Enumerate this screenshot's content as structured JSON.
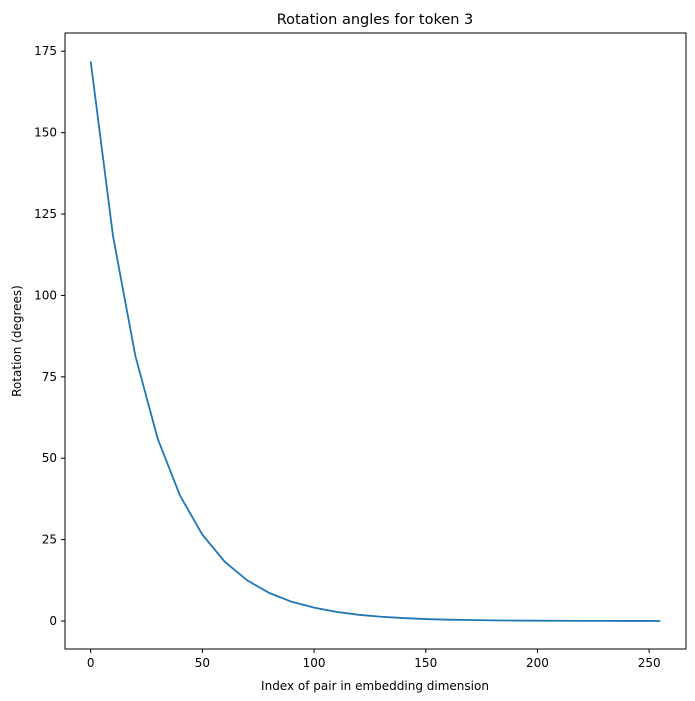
{
  "chart_data": {
    "type": "line",
    "title": "Rotation angles for token 3",
    "xlabel": "Index of pair in embedding dimension",
    "ylabel": "Rotation (degrees)",
    "xlim": [
      -11.5,
      266.5
    ],
    "ylim": [
      -8.6,
      180.6
    ],
    "xticks": [
      0,
      50,
      100,
      150,
      200,
      250
    ],
    "yticks": [
      0,
      25,
      50,
      75,
      100,
      125,
      150,
      175
    ],
    "grid": false,
    "series": [
      {
        "color": "#1f77b4",
        "x": [
          0,
          10,
          20,
          30,
          40,
          50,
          60,
          70,
          80,
          90,
          100,
          110,
          120,
          130,
          140,
          150,
          160,
          170,
          180,
          190,
          200,
          210,
          220,
          230,
          240,
          250,
          255
        ],
        "y": [
          171.9,
          118.2,
          81.4,
          56.0,
          38.5,
          26.5,
          18.2,
          12.5,
          8.6,
          5.9,
          4.1,
          2.8,
          1.9,
          1.3,
          0.9,
          0.6,
          0.4,
          0.3,
          0.2,
          0.14,
          0.1,
          0.07,
          0.05,
          0.03,
          0.02,
          0.015,
          0.01
        ]
      }
    ]
  }
}
